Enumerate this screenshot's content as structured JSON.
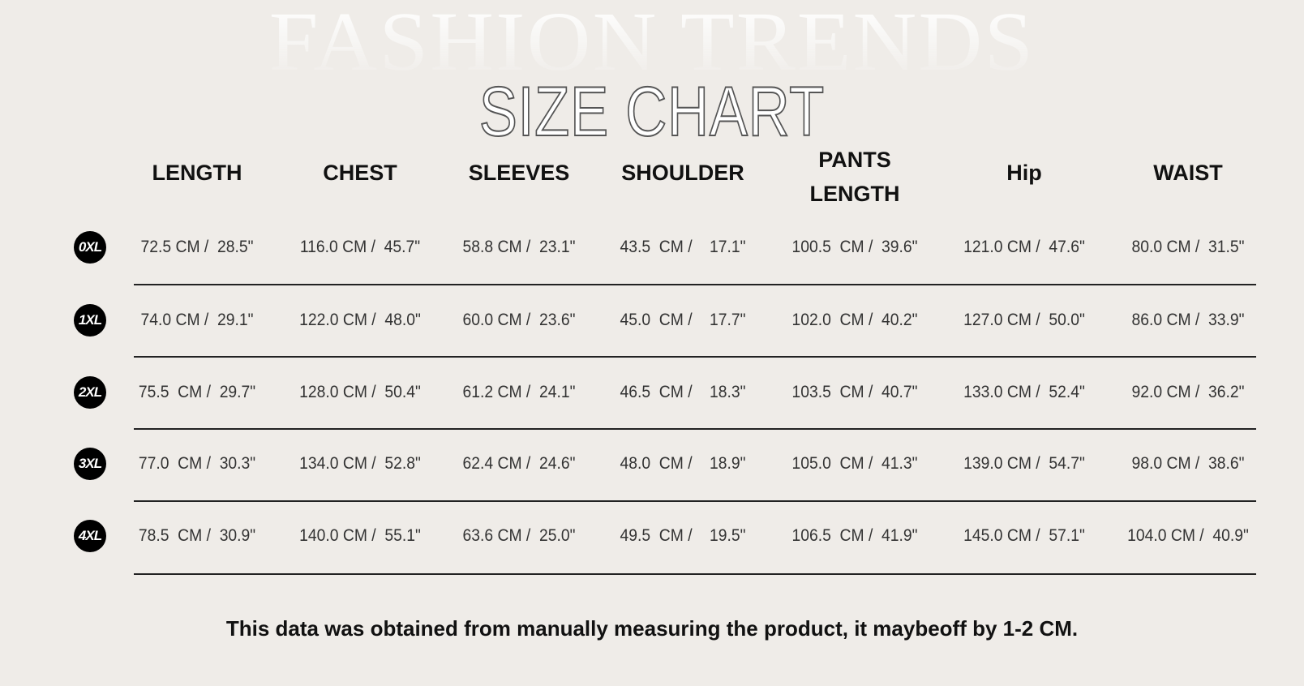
{
  "background_title": "FASHION TRENDS",
  "title": "SIZE CHART",
  "headers": [
    "LENGTH",
    "CHEST",
    "SLEEVES",
    "SHOULDER",
    "PANTS LENGTH",
    "Hip",
    "WAIST"
  ],
  "rows": [
    {
      "size": "0XL",
      "values": [
        "72.5 CM /  28.5\"",
        "116.0 CM /  45.7\"",
        "58.8 CM /  23.1\"",
        "43.5  CM /    17.1\"",
        "100.5  CM /  39.6\"",
        "121.0 CM /  47.6\"",
        "80.0 CM /  31.5\""
      ]
    },
    {
      "size": "1XL",
      "values": [
        "74.0 CM /  29.1\"",
        "122.0 CM /  48.0\"",
        "60.0 CM /  23.6\"",
        "45.0  CM /    17.7\"",
        "102.0  CM /  40.2\"",
        "127.0 CM /  50.0\"",
        "86.0 CM /  33.9\""
      ]
    },
    {
      "size": "2XL",
      "values": [
        "75.5  CM /  29.7\"",
        "128.0 CM /  50.4\"",
        "61.2 CM /  24.1\"",
        "46.5  CM /    18.3\"",
        "103.5  CM /  40.7\"",
        "133.0 CM /  52.4\"",
        "92.0 CM /  36.2\""
      ]
    },
    {
      "size": "3XL",
      "values": [
        "77.0  CM /  30.3\"",
        "134.0 CM /  52.8\"",
        "62.4 CM /  24.6\"",
        "48.0  CM /    18.9\"",
        "105.0  CM /  41.3\"",
        "139.0 CM /  54.7\"",
        "98.0 CM /  38.6\""
      ]
    },
    {
      "size": "4XL",
      "values": [
        "78.5  CM /  30.9\"",
        "140.0 CM /  55.1\"",
        "63.6 CM /  25.0\"",
        "49.5  CM /    19.5\"",
        "106.5  CM /  41.9\"",
        "145.0 CM /  57.1\"",
        "104.0 CM /  40.9\""
      ]
    }
  ],
  "footer": "This data was obtained from manually measuring the product, it maybeoff by 1-2 CM."
}
